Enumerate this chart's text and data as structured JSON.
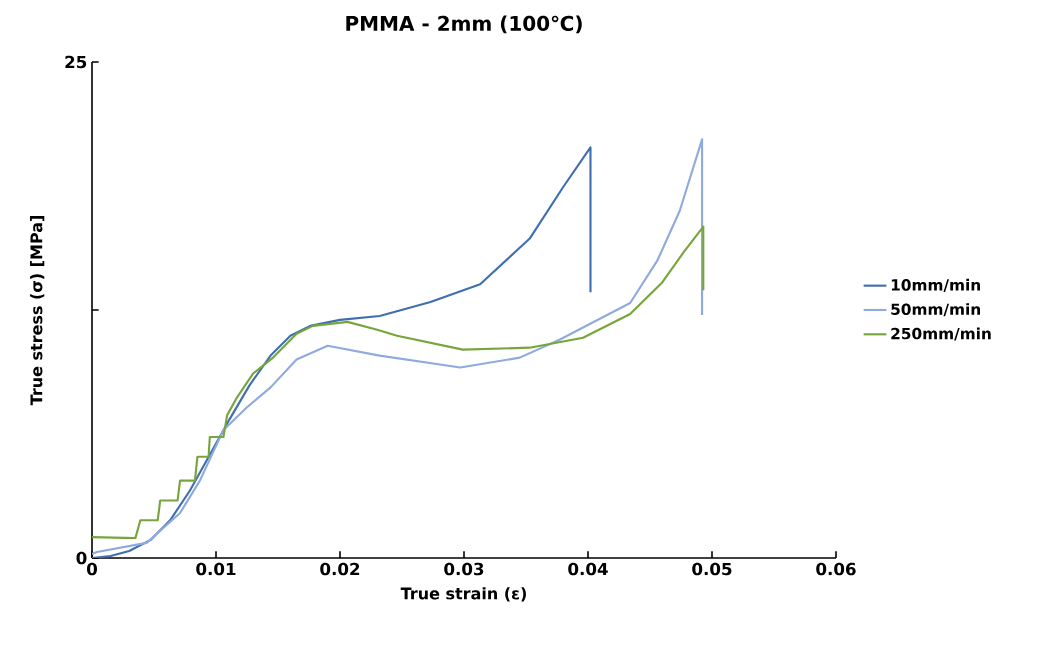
{
  "chart_data": {
    "type": "line",
    "title": "PMMA - 2mm (100℃)",
    "xlabel": "True strain (ε)",
    "ylabel": "True stress (σ) [MPa]",
    "xlim": [
      0,
      0.06
    ],
    "ylim": [
      0,
      25
    ],
    "xticks": [
      0,
      0.01,
      0.02,
      0.03,
      0.04,
      0.05,
      0.06
    ],
    "yticks": [
      0,
      {
        "value": 12.5,
        "label": null
      },
      25
    ],
    "legend": "right",
    "series": [
      {
        "name": "10mm/min",
        "color": "#3f6fb0",
        "x": [
          0,
          0.0015,
          0.003,
          0.0047,
          0.0063,
          0.0079,
          0.0095,
          0.0111,
          0.0127,
          0.0144,
          0.016,
          0.0176,
          0.02,
          0.0232,
          0.0273,
          0.0313,
          0.0353,
          0.038,
          0.0402,
          0.0402
        ],
        "values": [
          0,
          0.1,
          0.35,
          0.9,
          1.9,
          3.4,
          5.2,
          7.0,
          8.7,
          10.2,
          11.2,
          11.7,
          12.0,
          12.2,
          12.9,
          13.8,
          16.1,
          18.7,
          20.7,
          13.4
        ]
      },
      {
        "name": "50mm/min",
        "color": "#8faadc",
        "x": [
          0,
          0.0004,
          0.0044,
          0.0071,
          0.0087,
          0.0106,
          0.0125,
          0.0144,
          0.0165,
          0.019,
          0.0232,
          0.0297,
          0.0345,
          0.0377,
          0.0434,
          0.0456,
          0.0474,
          0.0492,
          0.0492
        ],
        "values": [
          0.2,
          0.3,
          0.76,
          2.27,
          3.9,
          6.45,
          7.6,
          8.6,
          10.0,
          10.7,
          10.2,
          9.6,
          10.1,
          11.0,
          12.85,
          15.0,
          17.5,
          21.1,
          12.25
        ]
      },
      {
        "name": "250mm/min",
        "color": "#77a53d",
        "x": [
          0,
          0.0035,
          0.0039,
          0.0053,
          0.0055,
          0.0069,
          0.0071,
          0.0083,
          0.0085,
          0.0094,
          0.0095,
          0.0106,
          0.0109,
          0.0117,
          0.013,
          0.0146,
          0.0165,
          0.0178,
          0.0206,
          0.023,
          0.0246,
          0.0299,
          0.0353,
          0.0396,
          0.0434,
          0.046,
          0.0477,
          0.0493,
          0.0493
        ],
        "values": [
          1.05,
          1.0,
          1.9,
          1.9,
          2.9,
          2.9,
          3.9,
          3.9,
          5.1,
          5.1,
          6.1,
          6.1,
          7.2,
          8.1,
          9.3,
          10.1,
          11.3,
          11.7,
          11.9,
          11.5,
          11.2,
          10.5,
          10.6,
          11.1,
          12.3,
          13.9,
          15.4,
          16.7,
          13.5
        ]
      }
    ]
  }
}
